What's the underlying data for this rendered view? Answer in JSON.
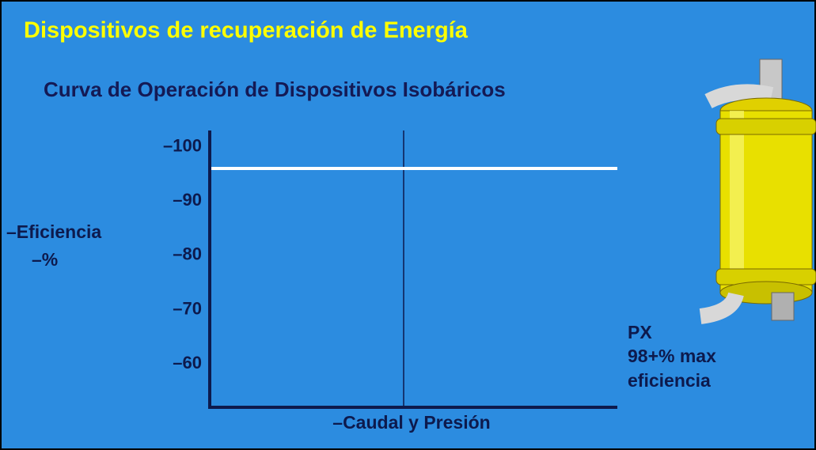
{
  "chart_data": {
    "type": "line",
    "title": "Dispositivos de recuperación de Energía",
    "subtitle": "Curva de Operación de Dispositivos Isobáricos",
    "ylabel": [
      "–Eficiencia",
      "–%"
    ],
    "xlabel": "–Caudal y Presión",
    "values": [
      96,
      96
    ],
    "color": "#ffffff",
    "ylim": [
      52,
      103
    ],
    "yticks": [
      {
        "value": 100,
        "label": "–100"
      },
      {
        "value": 90,
        "label": "–90"
      },
      {
        "value": 80,
        "label": "–80"
      },
      {
        "value": 70,
        "label": "–70"
      },
      {
        "value": 60,
        "label": "–60"
      }
    ],
    "annotation": [
      "PX",
      "98+% max",
      "eficiencia"
    ]
  }
}
